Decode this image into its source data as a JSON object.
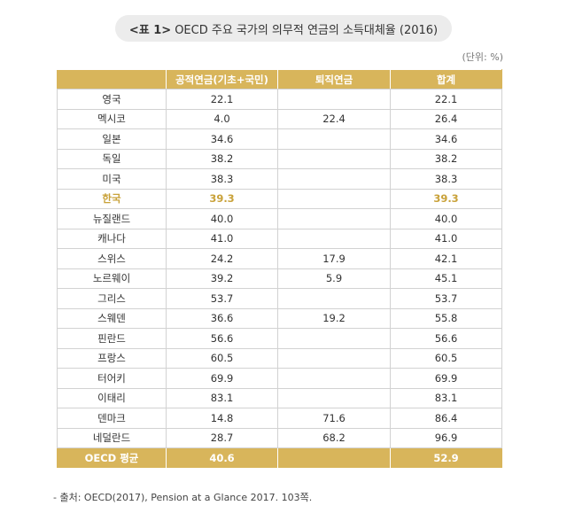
{
  "title": {
    "prefix": "<표 1>",
    "text": "OECD 주요 국가의 의무적 연금의 소득대체율 (2016)"
  },
  "unit": "(단위: %)",
  "table": {
    "headers": [
      "",
      "공적연금(기초+국민)",
      "퇴직연금",
      "합계"
    ],
    "rows": [
      {
        "country": "영국",
        "public": "22.1",
        "retire": "",
        "total": "22.1"
      },
      {
        "country": "멕시코",
        "public": "4.0",
        "retire": "22.4",
        "total": "26.4"
      },
      {
        "country": "일본",
        "public": "34.6",
        "retire": "",
        "total": "34.6"
      },
      {
        "country": "독일",
        "public": "38.2",
        "retire": "",
        "total": "38.2"
      },
      {
        "country": "미국",
        "public": "38.3",
        "retire": "",
        "total": "38.3"
      },
      {
        "country": "한국",
        "public": "39.3",
        "retire": "",
        "total": "39.3"
      },
      {
        "country": "뉴질랜드",
        "public": "40.0",
        "retire": "",
        "total": "40.0"
      },
      {
        "country": "캐나다",
        "public": "41.0",
        "retire": "",
        "total": "41.0"
      },
      {
        "country": "스위스",
        "public": "24.2",
        "retire": "17.9",
        "total": "42.1"
      },
      {
        "country": "노르웨이",
        "public": "39.2",
        "retire": "5.9",
        "total": "45.1"
      },
      {
        "country": "그리스",
        "public": "53.7",
        "retire": "",
        "total": "53.7"
      },
      {
        "country": "스웨덴",
        "public": "36.6",
        "retire": "19.2",
        "total": "55.8"
      },
      {
        "country": "핀란드",
        "public": "56.6",
        "retire": "",
        "total": "56.6"
      },
      {
        "country": "프랑스",
        "public": "60.5",
        "retire": "",
        "total": "60.5"
      },
      {
        "country": "터어키",
        "public": "69.9",
        "retire": "",
        "total": "69.9"
      },
      {
        "country": "이태리",
        "public": "83.1",
        "retire": "",
        "total": "83.1"
      },
      {
        "country": "덴마크",
        "public": "14.8",
        "retire": "71.6",
        "total": "86.4"
      },
      {
        "country": "네덜란드",
        "public": "28.7",
        "retire": "68.2",
        "total": "96.9"
      }
    ],
    "highlight_country": "한국",
    "footer": {
      "country": "OECD 평균",
      "public": "40.6",
      "retire": "",
      "total": "52.9"
    }
  },
  "source": "- 출처: OECD(2017), Pension at a Glance 2017. 103쪽.",
  "colors": {
    "accent": "#d8b55b",
    "highlight_text": "#c9a23a",
    "pill_bg": "#ececec"
  }
}
